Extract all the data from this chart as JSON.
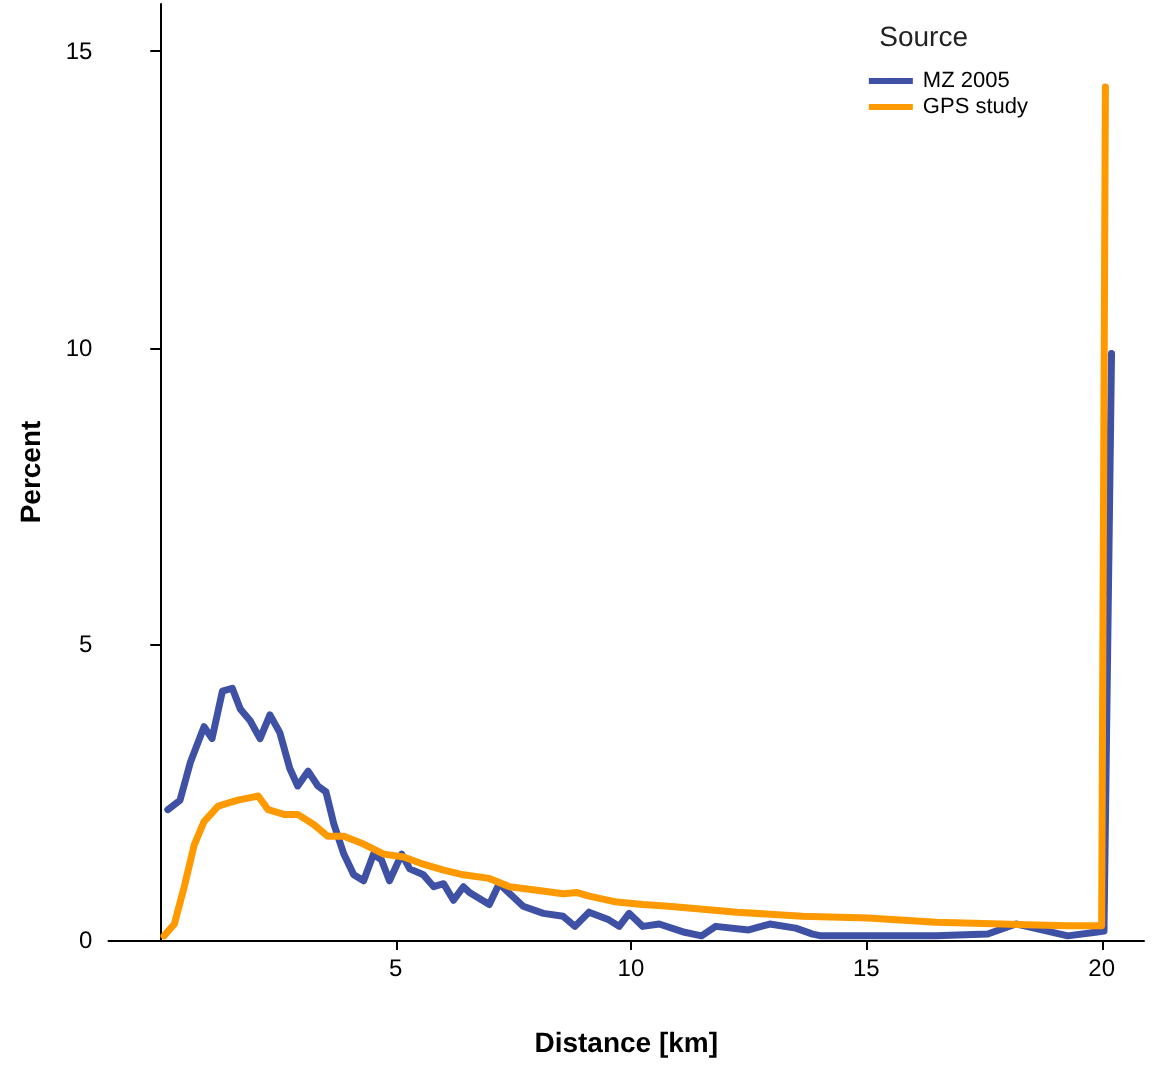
{
  "chart_data": {
    "type": "line",
    "xlabel": "Distance [km]",
    "ylabel": "Percent",
    "legend_title": "Source",
    "legend": "top right",
    "grid": false,
    "marker": "none",
    "line_style": "solid",
    "xlim": [
      -1.1,
      20.9
    ],
    "xticks": [
      5,
      10,
      15,
      20
    ],
    "ylim": [
      0,
      15.8
    ],
    "yticks": [
      0,
      5,
      10,
      15
    ],
    "series": [
      {
        "name": "MZ 2005",
        "color": "#3f51a5",
        "x": [
          0.16,
          0.42,
          0.64,
          0.93,
          1.1,
          1.32,
          1.53,
          1.7,
          1.91,
          2.12,
          2.33,
          2.54,
          2.75,
          2.92,
          3.14,
          3.35,
          3.52,
          3.69,
          3.9,
          4.11,
          4.32,
          4.53,
          4.7,
          4.87,
          5.13,
          5.3,
          5.59,
          5.81,
          6.02,
          6.23,
          6.44,
          6.57,
          6.99,
          7.2,
          7.71,
          8.14,
          8.56,
          8.81,
          9.11,
          9.53,
          9.75,
          9.96,
          10.25,
          10.6,
          11.14,
          11.5,
          11.8,
          12.5,
          12.95,
          13.5,
          13.86,
          14.04,
          14.76,
          15.47,
          16.48,
          17.58,
          18.18,
          18.73,
          19.28,
          19.87,
          20.05,
          20.21
        ],
        "values": [
          2.2,
          2.36,
          3.0,
          3.6,
          3.4,
          4.2,
          4.25,
          3.9,
          3.7,
          3.4,
          3.8,
          3.5,
          2.9,
          2.6,
          2.85,
          2.6,
          2.5,
          1.95,
          1.45,
          1.1,
          1.0,
          1.45,
          1.35,
          1.0,
          1.45,
          1.2,
          1.1,
          0.9,
          0.95,
          0.67,
          0.9,
          0.8,
          0.6,
          0.95,
          0.57,
          0.45,
          0.4,
          0.23,
          0.47,
          0.34,
          0.23,
          0.45,
          0.23,
          0.27,
          0.13,
          0.07,
          0.23,
          0.17,
          0.27,
          0.2,
          0.1,
          0.07,
          0.07,
          0.07,
          0.07,
          0.1,
          0.27,
          0.17,
          0.07,
          0.13,
          0.15,
          9.9
        ]
      },
      {
        "name": "GPS study",
        "color": "#ff9900",
        "x": [
          0.08,
          0.3,
          0.51,
          0.72,
          0.93,
          1.23,
          1.65,
          2.08,
          2.29,
          2.63,
          2.92,
          3.26,
          3.56,
          3.9,
          4.32,
          4.75,
          5.17,
          5.59,
          6.02,
          6.44,
          6.99,
          7.42,
          8.0,
          8.56,
          8.86,
          9.11,
          9.7,
          10.25,
          10.8,
          12.25,
          13.64,
          15.04,
          16.48,
          17.88,
          19.28,
          20.0,
          20.08
        ],
        "values": [
          0.07,
          0.27,
          0.9,
          1.6,
          2.0,
          2.26,
          2.36,
          2.43,
          2.2,
          2.12,
          2.12,
          1.95,
          1.75,
          1.75,
          1.62,
          1.45,
          1.4,
          1.28,
          1.18,
          1.1,
          1.04,
          0.9,
          0.84,
          0.78,
          0.8,
          0.74,
          0.64,
          0.6,
          0.57,
          0.47,
          0.4,
          0.37,
          0.3,
          0.27,
          0.24,
          0.24,
          14.4
        ]
      }
    ]
  }
}
